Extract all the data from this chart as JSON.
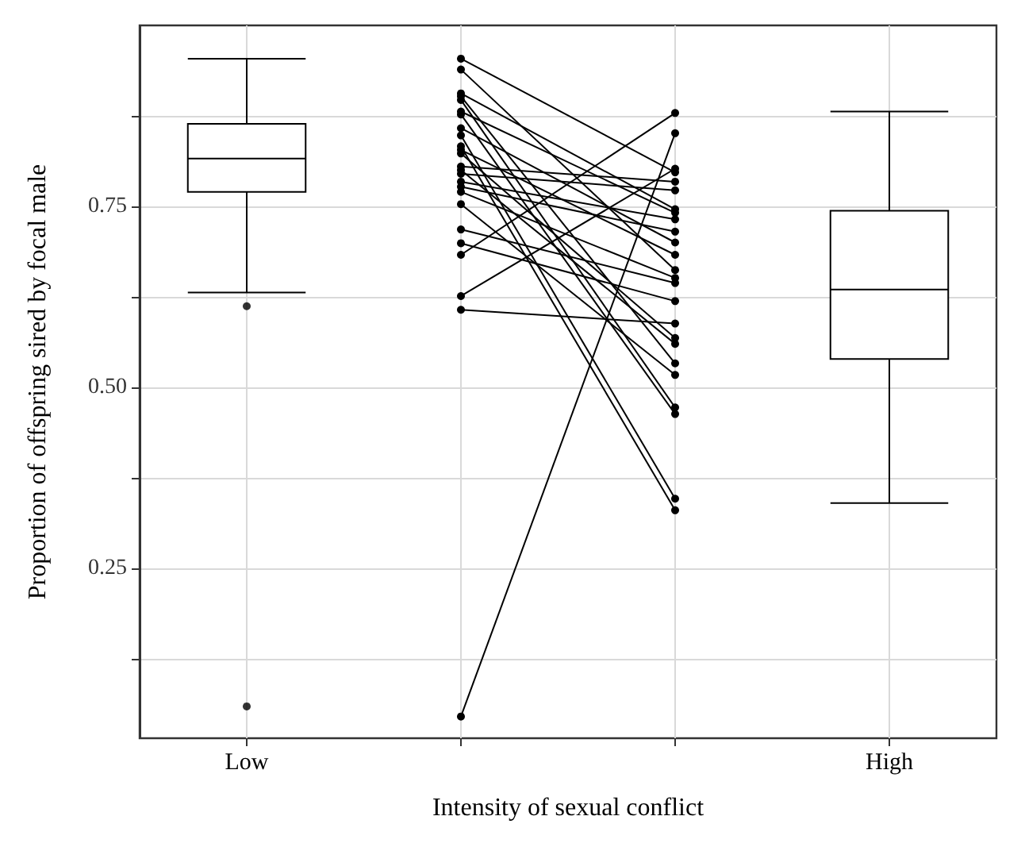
{
  "chart_data": {
    "type": "box",
    "xlabel": "Intensity of sexual conflict",
    "ylabel": "Proportion of offspring sired by focal male",
    "categories": [
      "Low",
      null,
      null,
      "High"
    ],
    "ylim": [
      0.015,
      1.0
    ],
    "yticks": [
      {
        "value": 0.125,
        "label": null
      },
      {
        "value": 0.25,
        "label": "0.25"
      },
      {
        "value": 0.375,
        "label": null
      },
      {
        "value": 0.5,
        "label": "0.50"
      },
      {
        "value": 0.625,
        "label": null
      },
      {
        "value": 0.75,
        "label": "0.75"
      },
      {
        "value": 0.875,
        "label": null
      }
    ],
    "grid": true,
    "marker": "circle",
    "series": [
      {
        "color": "#000000",
        "boxes": [
          {
            "low": 0.631,
            "q1": 0.77,
            "median": 0.816,
            "q3": 0.864,
            "high": 0.954,
            "outliers": [
              0.612,
              0.059
            ]
          },
          null,
          null,
          {
            "low": 0.34,
            "q1": 0.539,
            "median": 0.635,
            "q3": 0.744,
            "high": 0.881
          }
        ]
      },
      {
        "type": "line",
        "color": "#000000",
        "values": [
          null,
          0.045,
          0.851,
          null
        ]
      },
      {
        "type": "line",
        "color": "#000000",
        "values": [
          null,
          0.607,
          0.588,
          null
        ]
      },
      {
        "type": "line",
        "color": "#000000",
        "values": [
          null,
          0.626,
          0.802,
          null
        ]
      },
      {
        "type": "line",
        "color": "#000000",
        "values": [
          null,
          0.683,
          0.879,
          null
        ]
      },
      {
        "type": "line",
        "color": "#000000",
        "values": [
          null,
          0.699,
          0.619,
          null
        ]
      },
      {
        "type": "line",
        "color": "#000000",
        "values": [
          null,
          0.718,
          0.644,
          null
        ]
      },
      {
        "type": "line",
        "color": "#000000",
        "values": [
          null,
          0.954,
          0.797,
          null
        ]
      },
      {
        "type": "line",
        "color": "#000000",
        "values": [
          null,
          0.939,
          0.662,
          null
        ]
      },
      {
        "type": "line",
        "color": "#000000",
        "values": [
          null,
          0.906,
          0.746,
          null
        ]
      },
      {
        "type": "line",
        "color": "#000000",
        "values": [
          null,
          0.902,
          0.533,
          null
        ]
      },
      {
        "type": "line",
        "color": "#000000",
        "values": [
          null,
          0.897,
          0.472,
          null
        ]
      },
      {
        "type": "line",
        "color": "#000000",
        "values": [
          null,
          0.881,
          0.741,
          null
        ]
      },
      {
        "type": "line",
        "color": "#000000",
        "values": [
          null,
          0.877,
          0.463,
          null
        ]
      },
      {
        "type": "line",
        "color": "#000000",
        "values": [
          null,
          0.858,
          0.7,
          null
        ]
      },
      {
        "type": "line",
        "color": "#000000",
        "values": [
          null,
          0.848,
          0.346,
          null
        ]
      },
      {
        "type": "line",
        "color": "#000000",
        "values": [
          null,
          0.833,
          0.33,
          null
        ]
      },
      {
        "type": "line",
        "color": "#000000",
        "values": [
          null,
          0.828,
          0.683,
          null
        ]
      },
      {
        "type": "line",
        "color": "#000000",
        "values": [
          null,
          0.823,
          0.568,
          null
        ]
      },
      {
        "type": "line",
        "color": "#000000",
        "values": [
          null,
          0.805,
          0.784,
          null
        ]
      },
      {
        "type": "line",
        "color": "#000000",
        "values": [
          null,
          0.8,
          0.56,
          null
        ]
      },
      {
        "type": "line",
        "color": "#000000",
        "values": [
          null,
          0.795,
          0.772,
          null
        ]
      },
      {
        "type": "line",
        "color": "#000000",
        "values": [
          null,
          0.784,
          0.732,
          null
        ]
      },
      {
        "type": "line",
        "color": "#000000",
        "values": [
          null,
          0.777,
          0.715,
          null
        ]
      },
      {
        "type": "line",
        "color": "#000000",
        "values": [
          null,
          0.77,
          0.651,
          null
        ]
      },
      {
        "type": "line",
        "color": "#000000",
        "values": [
          null,
          0.753,
          0.517,
          null
        ]
      }
    ]
  }
}
